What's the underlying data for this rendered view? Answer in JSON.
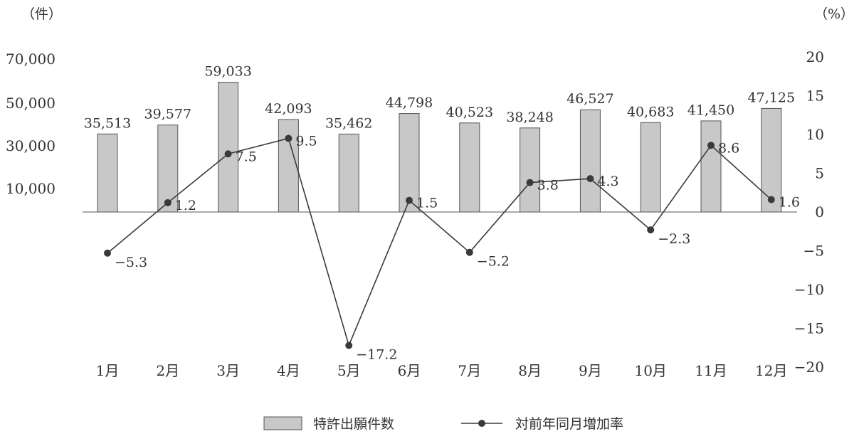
{
  "chart_data": {
    "type": "bar",
    "categories": [
      "1月",
      "2月",
      "3月",
      "4月",
      "5月",
      "6月",
      "7月",
      "8月",
      "9月",
      "10月",
      "11月",
      "12月"
    ],
    "series": [
      {
        "name": "特許出願件数",
        "type": "bar",
        "axis": "left",
        "values": [
          35513,
          39577,
          59033,
          42093,
          35462,
          44798,
          40523,
          38248,
          46527,
          40683,
          41450,
          47125
        ],
        "labels": [
          "35,513",
          "39,577",
          "59,033",
          "42,093",
          "35,462",
          "44,798",
          "40,523",
          "38,248",
          "46,527",
          "40,683",
          "41,450",
          "47,125"
        ],
        "color": "#c8c8c8"
      },
      {
        "name": "対前年同月増加率",
        "type": "line",
        "axis": "right",
        "values": [
          -5.3,
          1.2,
          7.5,
          9.5,
          -17.2,
          1.5,
          -5.2,
          3.8,
          4.3,
          -2.3,
          8.6,
          1.6
        ],
        "labels": [
          "−5.3",
          "1.2",
          "7.5",
          "9.5",
          "−17.2",
          "1.5",
          "−5.2",
          "3.8",
          "4.3",
          "−2.3",
          "8.6",
          "1.6"
        ],
        "color": "#3a3a3a"
      }
    ],
    "left_axis": {
      "unit": "（件）",
      "ticks": [
        10000,
        30000,
        50000,
        70000
      ],
      "tick_labels": [
        "10,000",
        "30,000",
        "50,000",
        "70,000"
      ]
    },
    "right_axis": {
      "unit": "（%）",
      "ticks": [
        20,
        15,
        10,
        5,
        0,
        -5,
        -10,
        -15,
        -20
      ],
      "tick_labels": [
        "20",
        "15",
        "10",
        "5",
        "0",
        "−5",
        "−10",
        "−15",
        "−20"
      ],
      "range": [
        -20,
        20
      ]
    },
    "legend_position": "bottom-center",
    "grid": false
  }
}
